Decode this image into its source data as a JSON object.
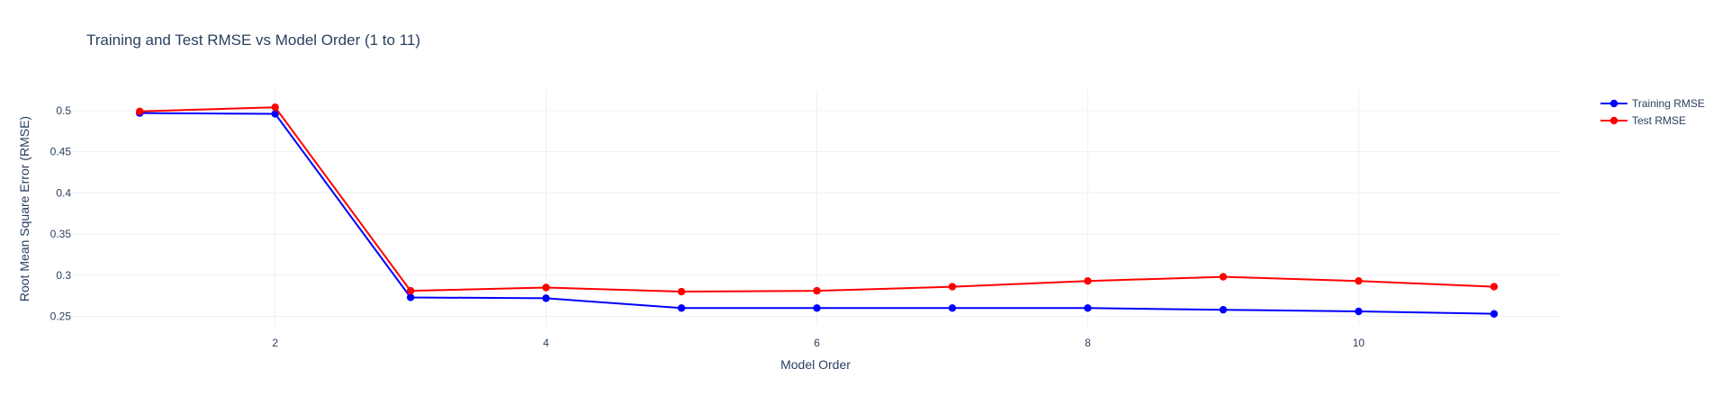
{
  "chart_data": {
    "type": "line",
    "title": "Training and Test RMSE vs Model Order (1 to 11)",
    "xlabel": "Model Order",
    "ylabel": "Root Mean Square Error (RMSE)",
    "x": [
      1,
      2,
      3,
      4,
      5,
      6,
      7,
      8,
      9,
      10,
      11
    ],
    "xlim": [
      0.5,
      11.5
    ],
    "ylim": [
      0.2385,
      0.525
    ],
    "xticks": [
      2,
      4,
      6,
      8,
      10
    ],
    "yticks": [
      0.25,
      0.3,
      0.35,
      0.4,
      0.45,
      0.5
    ],
    "ytick_labels": [
      "0.25",
      "0.3",
      "0.35",
      "0.4",
      "0.45",
      "0.5"
    ],
    "grid": true,
    "legend_position": "top-right",
    "series": [
      {
        "name": "Training RMSE",
        "color": "#0000ff",
        "values": [
          0.497,
          0.496,
          0.273,
          0.272,
          0.26,
          0.26,
          0.26,
          0.26,
          0.258,
          0.256,
          0.253
        ]
      },
      {
        "name": "Test RMSE",
        "color": "#ff0000",
        "values": [
          0.499,
          0.504,
          0.281,
          0.285,
          0.28,
          0.281,
          0.286,
          0.293,
          0.298,
          0.293,
          0.286
        ]
      }
    ]
  }
}
